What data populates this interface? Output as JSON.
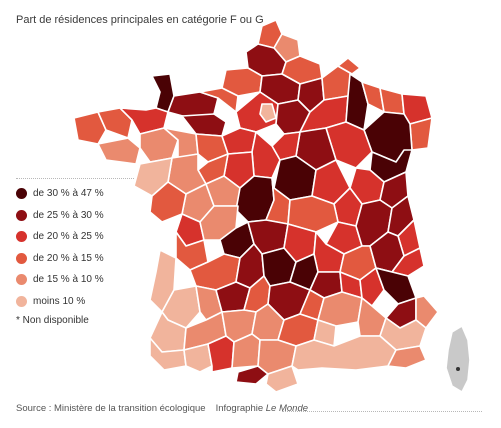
{
  "title": "Part de résidences principales en catégorie F ou G",
  "colors": {
    "c1": "#4a0205",
    "c2": "#8e0e13",
    "c3": "#d6322c",
    "c4": "#e2593f",
    "c5": "#ea8a6e",
    "c6": "#f1b49c",
    "na": "#c9c9c9"
  },
  "legend": [
    {
      "label": "de 30 % à 47 %",
      "color": "#4a0205"
    },
    {
      "label": "de 25 % à 30 %",
      "color": "#8e0e13"
    },
    {
      "label": "de 20 % à 25 %",
      "color": "#d6322c"
    },
    {
      "label": "de 20 % à 15 %",
      "color": "#e2593f"
    },
    {
      "label": "de 15 % à 10 %",
      "color": "#ea8a6e"
    },
    {
      "label": "moins 10 %",
      "color": "#f1b49c"
    }
  ],
  "note": "* Non disponible",
  "footer": {
    "source": "Source : Ministère de la transition écologique",
    "credit_prefix": "Infographie ",
    "credit_name": "Le Monde"
  }
}
